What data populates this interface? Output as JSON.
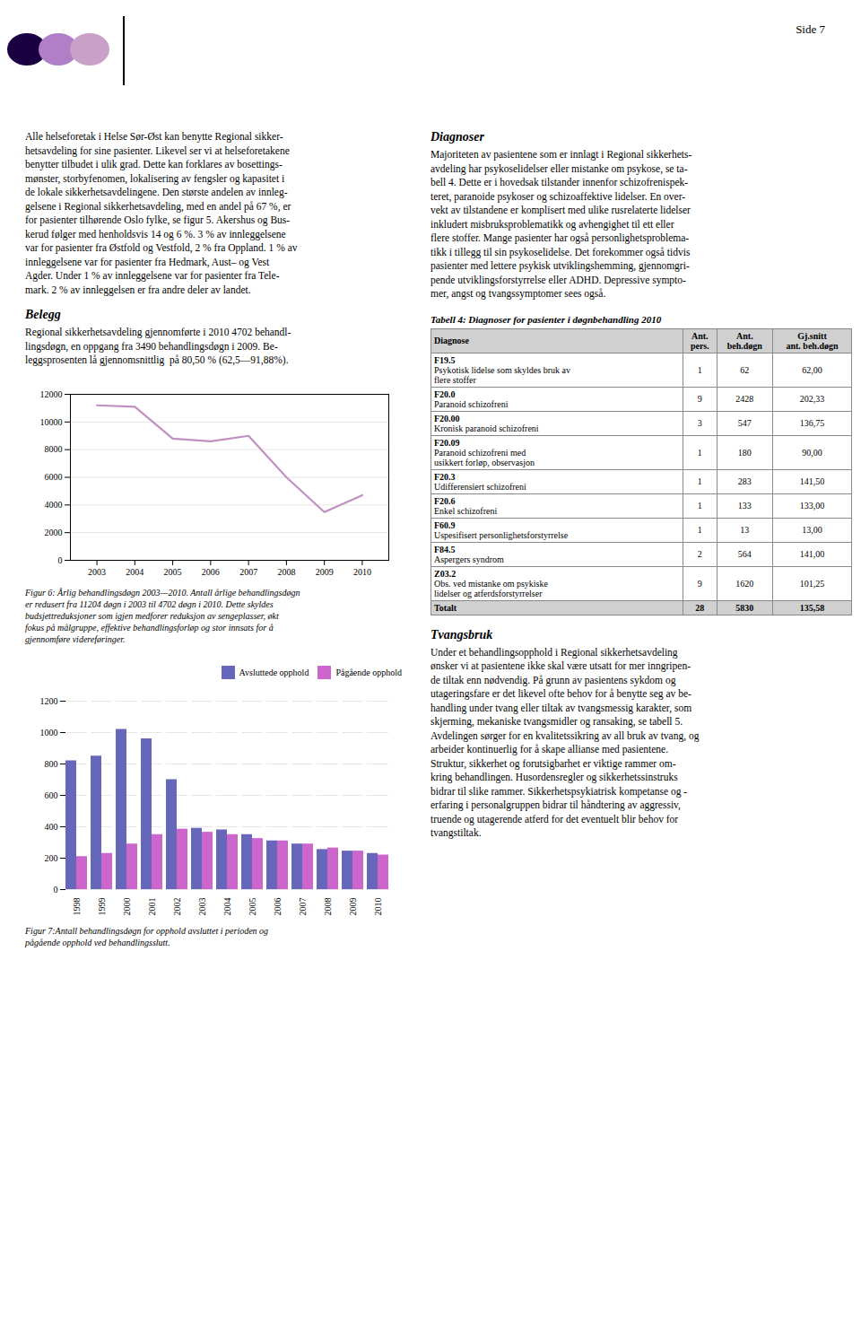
{
  "page_number": "Side 7",
  "circle_colors": [
    "#1a0040",
    "#b07fc8",
    "#c8a0c8"
  ],
  "left_text": [
    {
      "lines": [
        "Alle helseforetak i Helse Sør-Øst kan benytte Regional sikker-",
        "hetsavdeling for sine pasienter. Likevel ser vi at helseforetakene",
        "benytter tilbudet i ulik grad. Dette kan forklares av bosettings-",
        "mønster, storbyfenomen, lokalisering av fengsler og kapasitet i",
        "de lokale sikkerhetsavdelingene. Den største andelen av innleg-",
        "gelsene i Regional sikkerhetsavdeling, med en andel på 67 %, er",
        "for pasienter tilhørende Oslo fylke, se figur 5. Akershus og Bus-",
        "kerud følger med henholdsvis 14 og 6 %. 3 % av innleggelsene",
        "var for pasienter fra Østfold og Vestfold, 2 % fra Oppland. 1 % av",
        "innleggelsene var for pasienter fra Hedmark, Aust– og Vest",
        "Agder. Under 1 % av innleggelsene var for pasienter fra Tele-",
        "mark. 2 % av innleggelsen er fra andre deler av landet."
      ]
    },
    {
      "heading": "Belegg",
      "lines": [
        "Regional sikkerhetsavdeling gjennomførte i 2010 4702 behandl-",
        "lingsdøgn, en oppgang fra 3490 behandlingsdøgn i 2009. Be-",
        "leggsprosenten lå gjennomsnittlig  på 80,50 % (62,5—91,88%)."
      ]
    }
  ],
  "right_text_top": [
    {
      "heading": "Diagnoser",
      "lines": [
        "Majoriteten av pasientene som er innlagt i Regional sikkerhets-",
        "avdeling har psykoselidelser eller mistanke om psykose, se ta-",
        "bell 4. Dette er i hovedsak tilstander innenfor schizofrenispek-",
        "teret, paranoide psykoser og schizoaffektive lidelser. En over-",
        "vekt av tilstandene er komplisert med ulike rusrelaterte lidelser",
        "inkludert misbruksproblematikk og avhengighet til ett eller",
        "flere stoffer. Mange pasienter har også personlighetsproblema-",
        "tikk i tillegg til sin psykoselidelse. Det forekommer også tidvis",
        "pasienter med lettere psykisk utviklingshemming, gjennomgri-",
        "pende utviklingsforstyrrelse eller ADHD. Depressive sympto-",
        "mer, angst og tvangssymptomer sees også."
      ]
    }
  ],
  "table": {
    "title": "Tabell 4: Diagnoser for pasienter i døgnbehandling 2010",
    "columns": [
      "Diagnose",
      "Ant.\npers.",
      "Ant.\nbeh.døgn",
      "Gj.snitt\nant. beh.døgn"
    ],
    "rows": [
      {
        "diag": "F19.5",
        "desc": [
          "Psykotisk lidelse som skyldes bruk av",
          "flere stoffer"
        ],
        "pers": "1",
        "dogn": "62",
        "gjsnitt": "62,00"
      },
      {
        "diag": "F20.0",
        "desc": [
          "Paranoid schizofreni"
        ],
        "pers": "9",
        "dogn": "2428",
        "gjsnitt": "202,33"
      },
      {
        "diag": "F20.00",
        "desc": [
          "Kronisk paranoid schizofreni"
        ],
        "pers": "3",
        "dogn": "547",
        "gjsnitt": "136,75"
      },
      {
        "diag": "F20.09",
        "desc": [
          "Paranoid schizofreni med",
          "usikkert forløp, observasjon"
        ],
        "pers": "1",
        "dogn": "180",
        "gjsnitt": "90,00"
      },
      {
        "diag": "F20.3",
        "desc": [
          "Udifferensiert schizofreni"
        ],
        "pers": "1",
        "dogn": "283",
        "gjsnitt": "141,50"
      },
      {
        "diag": "F20.6",
        "desc": [
          "Enkel schizofreni"
        ],
        "pers": "1",
        "dogn": "133",
        "gjsnitt": "133,00"
      },
      {
        "diag": "F60.9",
        "desc": [
          "Uspesifisert personlighetsforstyrrelse"
        ],
        "pers": "1",
        "dogn": "13",
        "gjsnitt": "13,00"
      },
      {
        "diag": "F84.5",
        "desc": [
          "Aspergers syndrom"
        ],
        "pers": "2",
        "dogn": "564",
        "gjsnitt": "141,00"
      },
      {
        "diag": "Z03.2",
        "desc": [
          "Obs. ved mistanke om psykiske",
          "lidelser og atferdsforstyrrelser"
        ],
        "pers": "9",
        "dogn": "1620",
        "gjsnitt": "101,25"
      },
      {
        "diag": "Totalt",
        "desc": [],
        "pers": "28",
        "dogn": "5830",
        "gjsnitt": "135,58"
      }
    ]
  },
  "right_text_bottom": [
    {
      "heading": "Tvangsbruk",
      "lines": [
        "Under et behandlingsopphold i Regional sikkerhetsavdeling",
        "ønsker vi at pasientene ikke skal være utsatt for mer inngripen-",
        "de tiltak enn nødvendig. På grunn av pasientens sykdom og",
        "utageringsfare er det likevel ofte behov for å benytte seg av be-",
        "handling under tvang eller tiltak av tvangsmessig karakter, som",
        "skjerming, mekaniske tvangsmidler og ransaking, se tabell 5.",
        "Avdelingen sørger for en kvalitetssikring av all bruk av tvang, og",
        "arbeider kontinuerlig for å skape allianse med pasientene.",
        "Struktur, sikkerhet og forutsigbarhet er viktige rammer om-",
        "kring behandlingen. Husordensregler og sikkerhetssinstruks",
        "bidrar til slike rammer. Sikkerhetspsykiatrisk kompetanse og -",
        "erfaring i personalgruppen bidrar til håndtering av aggressiv,",
        "truende og utagerende atferd for det eventuelt blir behov for",
        "tvangstiltak."
      ]
    }
  ],
  "chart_data": [
    {
      "type": "line",
      "caption": [
        "Figur 6: Årlig behandlingsdøgn 2003—2010. Antall årlige behandlingsdøgn",
        "er redusert fra 11204 døgn i 2003 til 4702 døgn i 2010. Dette skyldes",
        "budsjettreduksjoner som igjen medforer reduksjon av sengeplasser, økt",
        "fokus på målgruppe, effektive behandlingsforløp og stor innsats for å",
        "gjennomføre videreføringer."
      ],
      "x": [
        2003,
        2004,
        2005,
        2006,
        2007,
        2008,
        2009,
        2010
      ],
      "values": [
        11204,
        11100,
        8800,
        8600,
        9000,
        6000,
        3490,
        4702
      ],
      "color": "#c090c0",
      "xlim": [
        2002.3,
        2010.7
      ],
      "xticks": [
        2003,
        2004,
        2005,
        2006,
        2007,
        2008,
        2009,
        2010
      ],
      "ylim": [
        0,
        12000
      ],
      "yticks": [
        0,
        2000,
        4000,
        6000,
        8000,
        10000,
        12000
      ],
      "grid": true
    },
    {
      "type": "bar",
      "caption": [
        "Figur 7:Antall behandlingsdøgn for opphold avsluttet i perioden og",
        "pågående opphold ved behandlingsslutt."
      ],
      "categories": [
        "1998",
        "1999",
        "2000",
        "2001",
        "2002",
        "2003",
        "2004",
        "2005",
        "2006",
        "2007",
        "2008",
        "2009",
        "2010"
      ],
      "series": [
        {
          "name": "Avsluttede opphold",
          "color": "#6666bb",
          "values": [
            820,
            850,
            1020,
            960,
            700,
            390,
            380,
            350,
            310,
            290,
            255,
            245,
            230
          ]
        },
        {
          "name": "Pågående opphold",
          "color": "#cc66cc",
          "values": [
            210,
            230,
            290,
            350,
            385,
            365,
            350,
            325,
            310,
            290,
            265,
            245,
            220
          ]
        }
      ],
      "ylim": [
        0,
        1200
      ],
      "yticks": [
        0,
        200,
        400,
        600,
        800,
        1000,
        1200
      ],
      "grid": true,
      "legend": "upper right"
    }
  ]
}
